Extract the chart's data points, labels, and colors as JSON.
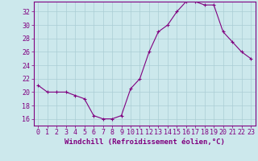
{
  "x": [
    0,
    1,
    2,
    3,
    4,
    5,
    6,
    7,
    8,
    9,
    10,
    11,
    12,
    13,
    14,
    15,
    16,
    17,
    18,
    19,
    20,
    21,
    22,
    23
  ],
  "y": [
    21.0,
    20.0,
    20.0,
    20.0,
    19.5,
    19.0,
    16.5,
    16.0,
    16.0,
    16.5,
    20.5,
    22.0,
    26.0,
    29.0,
    30.0,
    32.0,
    33.5,
    33.5,
    33.0,
    33.0,
    29.0,
    27.5,
    26.0,
    25.0
  ],
  "line_color": "#800080",
  "marker": "+",
  "bg_color": "#cce8ec",
  "grid_color": "#aacdd4",
  "xlabel": "Windchill (Refroidissement éolien,°C)",
  "ylim": [
    15.0,
    33.5
  ],
  "xlim": [
    -0.5,
    23.5
  ],
  "yticks": [
    16,
    18,
    20,
    22,
    24,
    26,
    28,
    30,
    32
  ],
  "xticks": [
    0,
    1,
    2,
    3,
    4,
    5,
    6,
    7,
    8,
    9,
    10,
    11,
    12,
    13,
    14,
    15,
    16,
    17,
    18,
    19,
    20,
    21,
    22,
    23
  ],
  "tick_color": "#800080",
  "label_color": "#800080",
  "spine_color": "#800080",
  "tick_fontsize": 6,
  "xlabel_fontsize": 6.5
}
